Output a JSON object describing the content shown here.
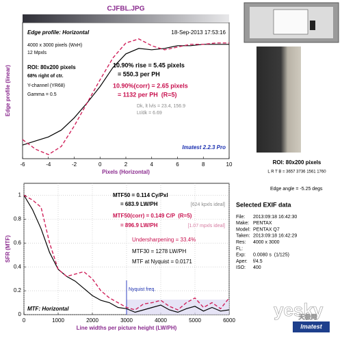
{
  "chart_data": [
    {
      "type": "line",
      "title": "CJFBL.JPG",
      "xlabel": "Pixels (Horizontal)",
      "ylabel": "Edge profile (linear)",
      "x": [
        -6,
        -5,
        -4,
        -3,
        -2,
        -1,
        0,
        1,
        2,
        3,
        4,
        5,
        6,
        7,
        8,
        9,
        10
      ],
      "xlim": [
        -6,
        10
      ],
      "xticks": [
        -6,
        -4,
        -2,
        0,
        2,
        4,
        6,
        8,
        10
      ],
      "ylim": [
        0,
        1
      ],
      "grid": false,
      "series": [
        {
          "color": "#000000",
          "dash": false,
          "values": [
            0.1,
            0.13,
            0.16,
            0.21,
            0.3,
            0.41,
            0.53,
            0.67,
            0.77,
            0.81,
            0.8,
            0.81,
            0.83,
            0.83,
            0.84,
            0.84,
            0.84
          ]
        },
        {
          "color": "#d0205a",
          "dash": true,
          "values": [
            0.14,
            0.07,
            0.03,
            0.09,
            0.24,
            0.41,
            0.58,
            0.74,
            0.85,
            0.88,
            0.83,
            0.8,
            0.82,
            0.84,
            0.84,
            0.85,
            0.85
          ]
        }
      ],
      "annotations": [
        "Edge profile: Horizontal",
        "18-Sep-2013 17:53:16",
        "4000 x 3000 pixels (WxH)",
        "12 Mpxls",
        "ROI: 80x200 pixels",
        "68% right of ctr.",
        "Y-channel (YR68)",
        "Gamma = 0.5",
        "10.90% rise = 5.45 pixels",
        "= 550.3 per PH",
        "10.90%(corr) = 2.65 pixels",
        "= 1132 per PH  (R=5)",
        "Dk, lt lvls = 23.4, 156.9",
        "Lt/dk = 6.69",
        "Imatest 2.2.3 Pro"
      ]
    },
    {
      "type": "line",
      "xlabel": "Line widths per picture height (LW/PH)",
      "ylabel": "SFR (MTF)",
      "x": [
        0,
        250,
        500,
        750,
        1000,
        1250,
        1500,
        1750,
        2000,
        2250,
        2500,
        2750,
        3000,
        3250,
        3500,
        3750,
        4000,
        4250,
        4500,
        4750,
        5000,
        5250,
        5500,
        5750,
        6000
      ],
      "xlim": [
        0,
        6000
      ],
      "xticks": [
        0,
        1000,
        2000,
        3000,
        4000,
        5000,
        6000
      ],
      "ylim": [
        0,
        1.1
      ],
      "yticks": [
        0,
        0.2,
        0.4,
        0.6,
        0.8,
        1
      ],
      "grid": true,
      "nyquist": 3000,
      "nyquist_label": "Nyquist freq.",
      "series": [
        {
          "color": "#000000",
          "dash": false,
          "values": [
            1.0,
            0.88,
            0.72,
            0.52,
            0.38,
            0.32,
            0.28,
            0.22,
            0.16,
            0.12,
            0.1,
            0.06,
            0.05,
            0.02,
            0.04,
            0.06,
            0.08,
            0.04,
            0.02,
            0.05,
            0.07,
            0.03,
            0.06,
            0.03,
            0.04
          ]
        },
        {
          "color": "#d0205a",
          "dash": true,
          "values": [
            1.0,
            0.96,
            0.9,
            0.6,
            0.38,
            0.32,
            0.34,
            0.36,
            0.3,
            0.2,
            0.14,
            0.1,
            0.06,
            0.04,
            0.09,
            0.1,
            0.12,
            0.07,
            0.04,
            0.1,
            0.14,
            0.06,
            0.1,
            0.05,
            0.14
          ]
        }
      ],
      "annotations": [
        "MTF50 = 0.114 Cy/Pxl",
        "= 683.9 LW/PH",
        "[624 kpxls ideal]",
        "MTF50(corr) = 0.149 C/P  (R=5)",
        "= 896.9 LW/PH",
        "[1.07 mpxls ideal]",
        "Undersharpening = 33.4%",
        "MTF30 = 1278 LW/PH",
        "MTF at Nyquist = 0.0171",
        "MTF: Horizontal"
      ]
    }
  ],
  "roi_panel": {
    "title": "ROI: 80x200 pixels",
    "coords": "L R T B = 3657 3736 1561 1760",
    "edge_angle": "Edge angle = -5.25 degs"
  },
  "exif": {
    "title": "Selected EXIF data",
    "rows": [
      [
        "File:",
        "2013:09:18 16:42:30"
      ],
      [
        "Make:",
        "PENTAX"
      ],
      [
        "Model:",
        "PENTAX Q7"
      ],
      [
        "Taken:",
        "2013:09:18 16:42:29"
      ],
      [
        "Res:",
        "4000 x 3000"
      ],
      [
        "FL:",
        ""
      ],
      [
        "Exp:",
        "0.0080 s  (1/125)"
      ],
      [
        "Aper:",
        "f/4.5"
      ],
      [
        "ISO:",
        "400"
      ]
    ]
  },
  "watermark": {
    "text": "yesky",
    "subtext": "天极网",
    "logo": "Imatest"
  }
}
